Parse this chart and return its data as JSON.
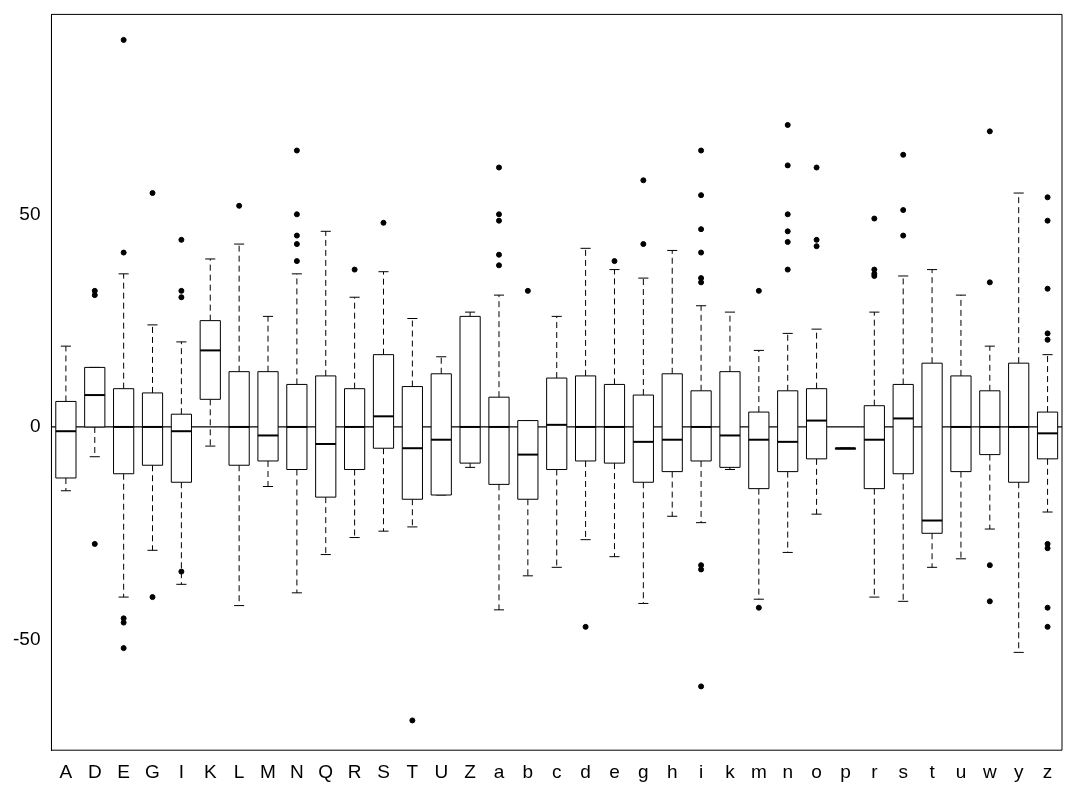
{
  "chart_data": {
    "type": "box",
    "categories": [
      "A",
      "D",
      "E",
      "G",
      "I",
      "K",
      "L",
      "M",
      "N",
      "Q",
      "R",
      "S",
      "T",
      "U",
      "Z",
      "a",
      "b",
      "c",
      "d",
      "e",
      "g",
      "h",
      "i",
      "k",
      "m",
      "n",
      "o",
      "p",
      "r",
      "s",
      "t",
      "u",
      "w",
      "y",
      "z"
    ],
    "boxes": [
      {
        "low": -15,
        "q1": -12,
        "median": -1,
        "q3": 6,
        "high": 19
      },
      {
        "low": -7,
        "q1": 0,
        "median": 7.5,
        "q3": 14,
        "high": 14,
        "outliers": [
          31,
          32,
          -27.5
        ]
      },
      {
        "low": -40,
        "q1": -11,
        "median": 0,
        "q3": 9,
        "high": 36,
        "outliers": [
          91,
          41,
          -45,
          -46,
          -52
        ]
      },
      {
        "low": -29,
        "q1": -9,
        "median": 0,
        "q3": 8,
        "high": 24,
        "outliers": [
          55,
          -40
        ]
      },
      {
        "low": -37,
        "q1": -13,
        "median": -1,
        "q3": 3,
        "high": 20,
        "outliers": [
          44,
          32,
          30.5,
          -34
        ]
      },
      {
        "low": -4.5,
        "q1": 6.5,
        "median": 18,
        "q3": 25,
        "high": 39.5
      },
      {
        "low": -42,
        "q1": -9,
        "median": 0,
        "q3": 13,
        "high": 43,
        "outliers": [
          52
        ]
      },
      {
        "low": -14,
        "q1": -8,
        "median": -2,
        "q3": 13,
        "high": 26
      },
      {
        "low": -39,
        "q1": -10,
        "median": 0,
        "q3": 10,
        "high": 36,
        "outliers": [
          65,
          50,
          45,
          43,
          39
        ]
      },
      {
        "low": -30,
        "q1": -16.5,
        "median": -4,
        "q3": 12,
        "high": 46
      },
      {
        "low": -26,
        "q1": -10,
        "median": 0,
        "q3": 9,
        "high": 30.5,
        "outliers": [
          37
        ]
      },
      {
        "low": -24.5,
        "q1": -5,
        "median": 2.5,
        "q3": 17,
        "high": 36.5,
        "outliers": [
          48
        ]
      },
      {
        "low": -23.5,
        "q1": -17,
        "median": -5,
        "q3": 9.5,
        "high": 25.5,
        "outliers": [
          -69
        ]
      },
      {
        "low": -16,
        "q1": -16,
        "median": -3,
        "q3": 12.5,
        "high": 16.5
      },
      {
        "low": -9.5,
        "q1": -8.5,
        "median": 0,
        "q3": 26,
        "high": 27
      },
      {
        "low": -43,
        "q1": -13.5,
        "median": 0,
        "q3": 7,
        "high": 31,
        "outliers": [
          61,
          50,
          48.5,
          40.5,
          38
        ]
      },
      {
        "low": -35,
        "q1": -17,
        "median": -6.5,
        "q3": 1.5,
        "high": 1.5,
        "outliers": [
          32
        ]
      },
      {
        "low": -33,
        "q1": -10,
        "median": 0.5,
        "q3": 11.5,
        "high": 26
      },
      {
        "low": -26.5,
        "q1": -8,
        "median": 0,
        "q3": 12,
        "high": 42,
        "outliers": [
          -47
        ]
      },
      {
        "low": -30.5,
        "q1": -8.5,
        "median": 0,
        "q3": 10,
        "high": 37,
        "outliers": [
          39
        ]
      },
      {
        "low": -41.5,
        "q1": -13,
        "median": -3.5,
        "q3": 7.5,
        "high": 35,
        "outliers": [
          58,
          43
        ]
      },
      {
        "low": -21,
        "q1": -10.5,
        "median": -3,
        "q3": 12.5,
        "high": 41.5
      },
      {
        "low": -22.5,
        "q1": -8,
        "median": 0,
        "q3": 8.5,
        "high": 28.5,
        "outliers": [
          65,
          54.5,
          46.5,
          41,
          35,
          34,
          -32.5,
          -33.5,
          -61
        ]
      },
      {
        "low": -10,
        "q1": -9.5,
        "median": -2,
        "q3": 13,
        "high": 27
      },
      {
        "low": -40.5,
        "q1": -14.5,
        "median": -3,
        "q3": 3.5,
        "high": 18,
        "outliers": [
          32,
          -42.5
        ]
      },
      {
        "low": -29.5,
        "q1": -10.5,
        "median": -3.5,
        "q3": 8.5,
        "high": 22,
        "outliers": [
          71,
          61.5,
          50,
          46,
          43.5,
          37
        ]
      },
      {
        "low": -20.5,
        "q1": -7.5,
        "median": 1.5,
        "q3": 9,
        "high": 23,
        "outliers": [
          61,
          44,
          42.5
        ]
      },
      {
        "low": -5,
        "q1": -5,
        "median": -5,
        "q3": -5,
        "high": -5
      },
      {
        "low": -40,
        "q1": -14.5,
        "median": -3,
        "q3": 5,
        "high": 27,
        "outliers": [
          49,
          37,
          36,
          35.5
        ]
      },
      {
        "low": -41,
        "q1": -11,
        "median": 2,
        "q3": 10,
        "high": 35.5,
        "outliers": [
          64,
          51,
          45
        ]
      },
      {
        "low": -33,
        "q1": -25,
        "median": -22,
        "q3": 15,
        "high": 37
      },
      {
        "low": -31,
        "q1": -10.5,
        "median": 0,
        "q3": 12,
        "high": 31
      },
      {
        "low": -24,
        "q1": -6.5,
        "median": 0,
        "q3": 8.5,
        "high": 19,
        "outliers": [
          69.5,
          34,
          -32.5,
          -41
        ]
      },
      {
        "low": -53,
        "q1": -13,
        "median": 0,
        "q3": 15,
        "high": 55
      },
      {
        "low": -20,
        "q1": -7.5,
        "median": -1.5,
        "q3": 3.5,
        "high": 17,
        "outliers": [
          54,
          48.5,
          32.5,
          22,
          20.5,
          -27.5,
          -28.5,
          -42.5,
          -47
        ]
      }
    ],
    "ylim": [
      -76,
      97
    ],
    "yticks": [
      -50,
      0,
      50
    ],
    "ref_lines": [
      {
        "axis": "y",
        "value": 0
      }
    ]
  }
}
